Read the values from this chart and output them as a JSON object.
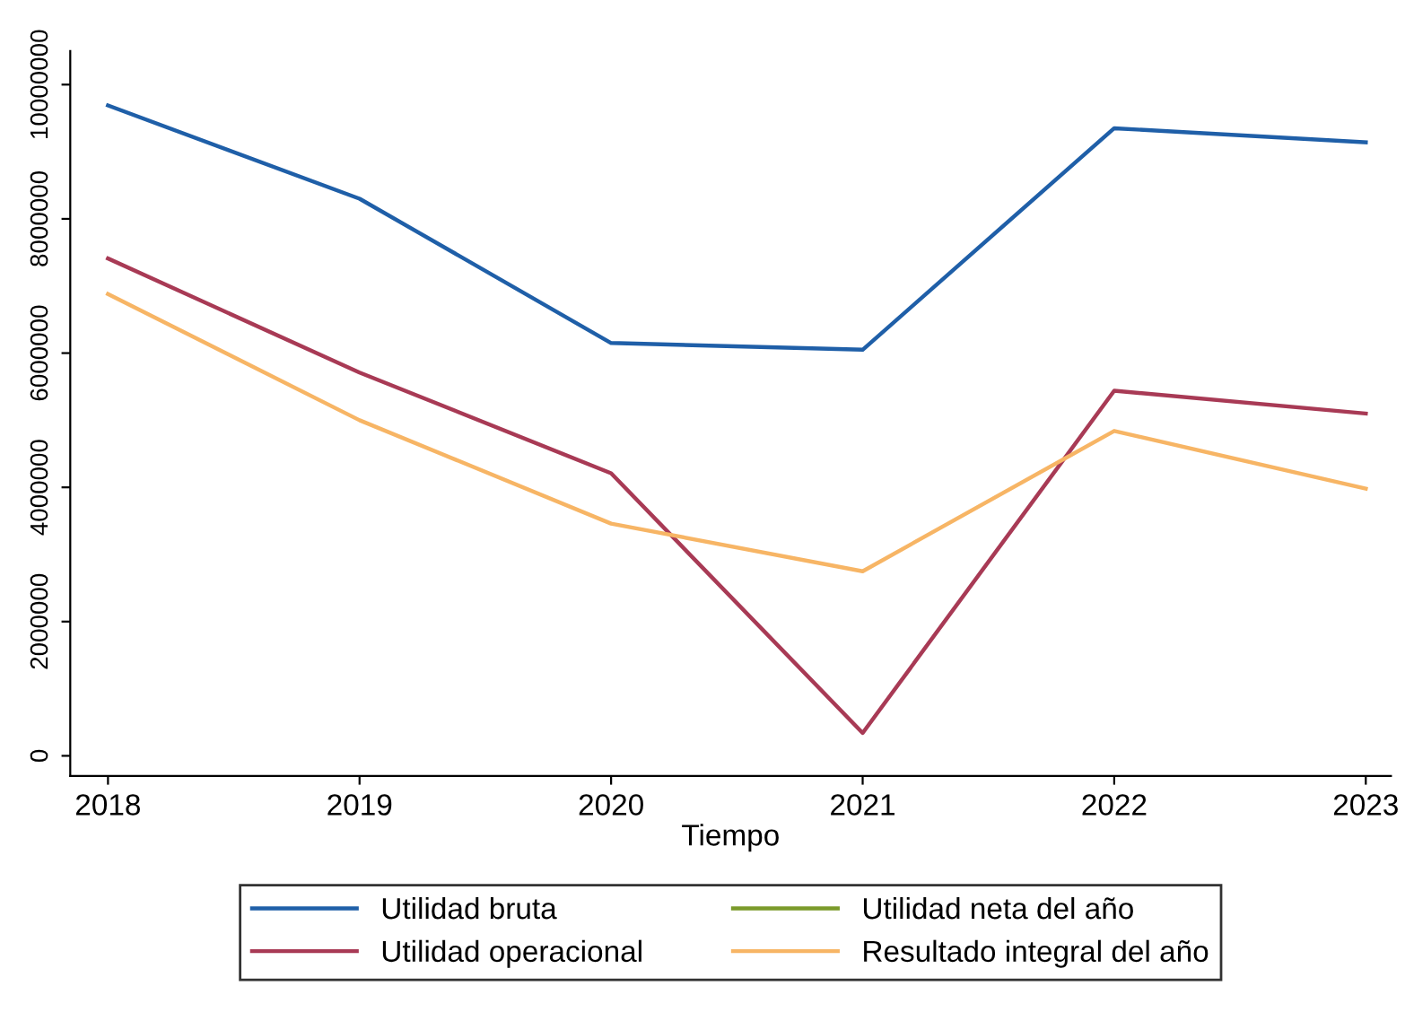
{
  "chart_data": {
    "type": "line",
    "xlabel": "Tiempo",
    "x": [
      2018,
      2019,
      2020,
      2021,
      2022,
      2023
    ],
    "series": [
      {
        "name": "Utilidad bruta",
        "color": "#1f5fa8",
        "values": [
          9690000,
          8300000,
          6150000,
          6050000,
          9350000,
          9140000
        ]
      },
      {
        "name": "Utilidad operacional",
        "color": "#a83a55",
        "values": [
          7410000,
          5710000,
          4210000,
          340000,
          5440000,
          5100000
        ]
      },
      {
        "name": "Utilidad neta del año",
        "color": "#7a9a2a",
        "values": [
          null,
          null,
          null,
          null,
          null,
          null
        ]
      },
      {
        "name": "Resultado integral del año",
        "color": "#f7b565",
        "values": [
          6880000,
          5000000,
          3460000,
          2750000,
          4840000,
          3980000
        ]
      }
    ],
    "xlim": [
      2017.85,
      2023.1
    ],
    "xticks": [
      2018,
      2019,
      2020,
      2021,
      2022,
      2023
    ],
    "ylim": [
      -300000,
      10500000
    ],
    "yticks": [
      0,
      2000000,
      4000000,
      6000000,
      8000000,
      10000000
    ],
    "grid": false,
    "legend": "bottom",
    "marker": "none",
    "line_style": "solid"
  }
}
